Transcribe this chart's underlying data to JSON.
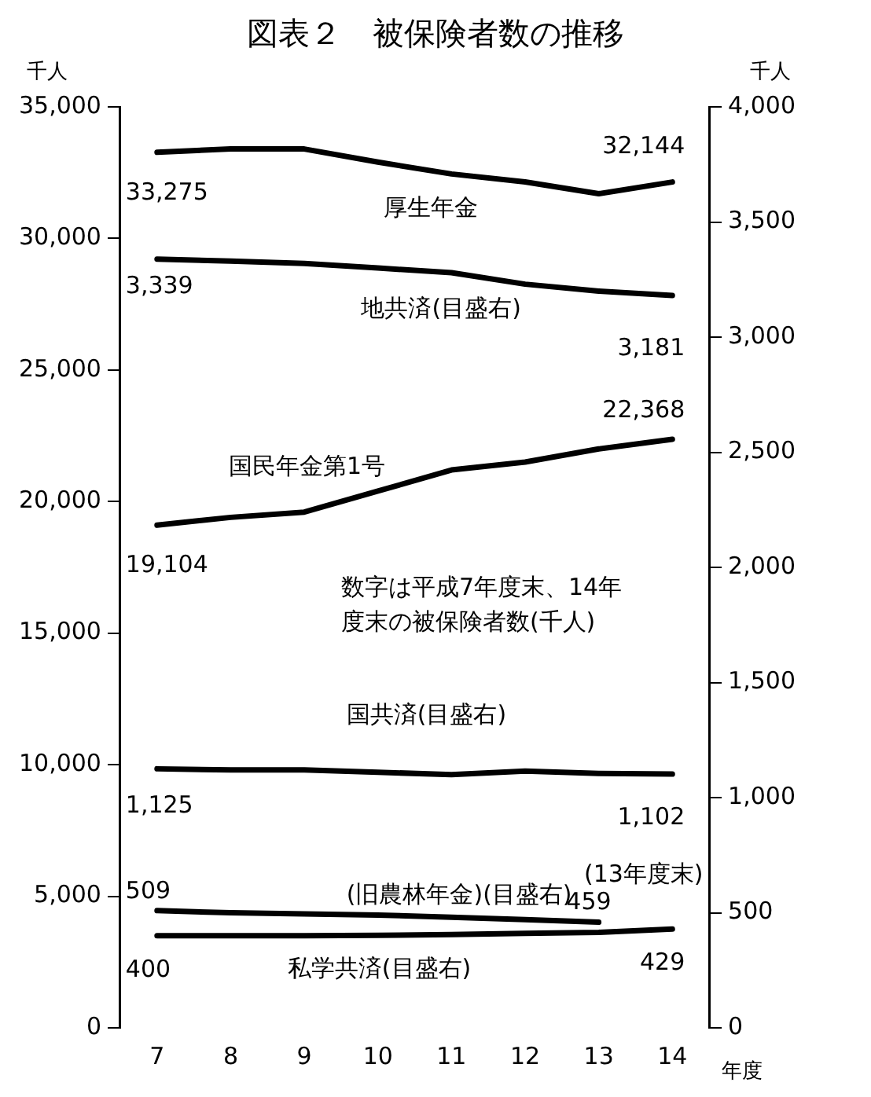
{
  "chart_data": {
    "type": "line",
    "title": "図表２　被保険者数の推移",
    "xlabel": "年度",
    "ylabel": "千人",
    "y2label": "千人",
    "categories": [
      "7",
      "8",
      "9",
      "10",
      "11",
      "12",
      "13",
      "14"
    ],
    "series": [
      {
        "name": "厚生年金",
        "color": "#000000",
        "values": [
          33275,
          33400,
          33400,
          32900,
          32450,
          32150,
          31700,
          32144
        ],
        "value_labels": [
          "33,275",
          null,
          null,
          null,
          null,
          null,
          null,
          "32,144"
        ]
      },
      {
        "name": "地共済(目盛右)",
        "axis": "y2",
        "color": "#000000",
        "values": [
          3339,
          3330,
          3320,
          3300,
          3280,
          3230,
          3200,
          3181
        ],
        "value_labels": [
          "3,339",
          null,
          null,
          null,
          null,
          null,
          null,
          "3,181"
        ]
      },
      {
        "name": "国民年金第1号",
        "color": "#000000",
        "values": [
          19104,
          19400,
          19600,
          20400,
          21200,
          21500,
          22000,
          22368
        ],
        "value_labels": [
          "19,104",
          null,
          null,
          null,
          null,
          null,
          null,
          "22,368"
        ]
      },
      {
        "name": "国共済(目盛右)",
        "axis": "y2",
        "color": "#000000",
        "values": [
          1125,
          1120,
          1120,
          1110,
          1100,
          1115,
          1105,
          1102
        ],
        "value_labels": [
          "1,125",
          null,
          null,
          null,
          null,
          null,
          null,
          "1,102"
        ]
      },
      {
        "name": "(旧農林年金)(目盛右)",
        "axis": "y2",
        "color": "#000000",
        "values": [
          509,
          500,
          495,
          490,
          480,
          470,
          459,
          null
        ],
        "value_labels": [
          "509",
          null,
          null,
          null,
          null,
          null,
          "459",
          null
        ]
      },
      {
        "name": "私学共済(目盛右)",
        "axis": "y2",
        "color": "#000000",
        "values": [
          400,
          400,
          400,
          402,
          405,
          410,
          415,
          429
        ],
        "value_labels": [
          "400",
          null,
          null,
          null,
          null,
          null,
          null,
          "429"
        ]
      }
    ],
    "ylim": [
      0,
      35000
    ],
    "yticks": [
      0,
      {
        "value": 5000,
        "label": "5,000"
      },
      {
        "value": 10000,
        "label": "10,000"
      },
      {
        "value": 15000,
        "label": "15,000"
      },
      {
        "value": 20000,
        "label": "20,000"
      },
      {
        "value": 25000,
        "label": "25,000"
      },
      {
        "value": 30000,
        "label": "30,000"
      },
      {
        "value": 35000,
        "label": "35,000"
      }
    ],
    "y2lim": [
      0,
      4000
    ],
    "y2ticks": [
      0,
      500,
      {
        "value": 1000,
        "label": "1,000"
      },
      {
        "value": 1500,
        "label": "1,500"
      },
      {
        "value": 2000,
        "label": "2,000"
      },
      {
        "value": 2500,
        "label": "2,500"
      },
      {
        "value": 3000,
        "label": "3,000"
      },
      {
        "value": 3500,
        "label": "3,500"
      },
      {
        "value": 4000,
        "label": "4,000"
      }
    ],
    "annotations": [
      "数字は平成7年度末、14年度末の被保険者数(千人)",
      "(13年度末)"
    ],
    "grid": false,
    "legend": false,
    "marker": "none",
    "line_style": "solid"
  }
}
